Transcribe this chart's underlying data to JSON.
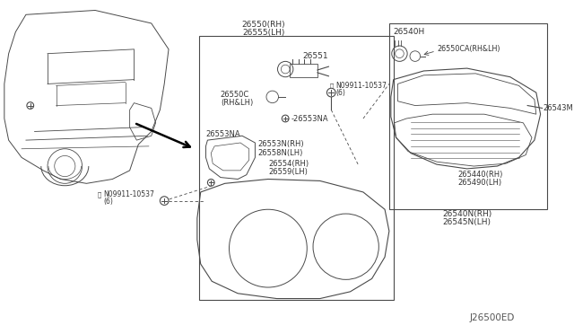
{
  "bg_color": "#ffffff",
  "line_color": "#4a4a4a",
  "text_color": "#333333",
  "diagram_id": "J26500ED",
  "labels": {
    "top_rh": "26550(RH)",
    "top_lh": "26555(LH)",
    "part_26551": "26551",
    "part_26550c": "26550C",
    "part_26550c_2": "(RH&LH)",
    "part_26553na_left": "26553NA",
    "part_26553na_right": "◆-26553NA",
    "part_26553n": "26553N(RH)",
    "part_26558n": "26558N(LH)",
    "part_26554": "26554(RH)",
    "part_26559": "26559(LH)",
    "screw1_label": "N09911-10537",
    "screw1_label2": "(6)",
    "screw2_label": "N09911-10537",
    "screw2_label2": "(6)",
    "inset_26540h": "26540H",
    "inset_26550ca": "26550CA(RH&LH)",
    "inset_26543m": "26543M",
    "inset_26544o_rh": "265440(RH)",
    "inset_26549o_lh": "265490(LH)",
    "inset_26540n_rh": "26540N(RH)",
    "inset_26545n_lh": "26545N(LH)"
  }
}
